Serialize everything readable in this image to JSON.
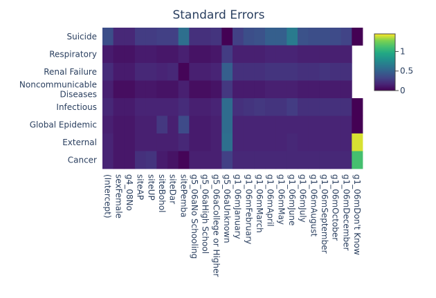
{
  "chart_data": {
    "type": "heatmap",
    "title": "Standard Errors",
    "x_labels": [
      "(Intercept)",
      "sexFemale",
      "g4_08No",
      "siteAP",
      "siteUP",
      "siteBohol",
      "siteDar",
      "sitePemba",
      "g5_06aNo Schooling",
      "g5_06aHigh School",
      "g5_06aCollege or Higher",
      "g5_06aUnknown",
      "g1_06mJanuary",
      "g1_06mFebruary",
      "g1_06mMarch",
      "g1_06mApril",
      "g1_06mMay",
      "g1_06mJune",
      "g1_06mJuly",
      "g1_06mAugust",
      "g1_06mSeptember",
      "g1_06mOctober",
      "g1_06mDecember",
      "g1_06mDon't Know"
    ],
    "y_labels": [
      "Suicide",
      "Respiratory",
      "Renal Failure",
      "Noncommunicable Diseases",
      "Infectious",
      "Global Epidemic",
      "External",
      "Cancer"
    ],
    "y_label_lines": [
      [
        "Suicide"
      ],
      [
        "Respiratory"
      ],
      [
        "Renal Failure"
      ],
      [
        "Noncommunicable",
        "Diseases"
      ],
      [
        "Infectious"
      ],
      [
        "Global Epidemic"
      ],
      [
        "External"
      ],
      [
        "Cancer"
      ]
    ],
    "values": [
      [
        0.38,
        0.18,
        0.18,
        0.28,
        0.28,
        0.3,
        0.3,
        0.58,
        0.22,
        0.22,
        0.24,
        0.0,
        0.3,
        0.38,
        0.4,
        0.48,
        0.48,
        0.66,
        0.4,
        0.38,
        0.38,
        0.36,
        0.32,
        0.0
      ],
      [
        0.12,
        0.08,
        0.08,
        0.12,
        0.12,
        0.1,
        0.1,
        0.14,
        0.08,
        0.08,
        0.1,
        0.28,
        0.14,
        0.14,
        0.14,
        0.16,
        0.16,
        0.16,
        0.14,
        0.14,
        0.14,
        0.14,
        0.14,
        null
      ],
      [
        0.2,
        0.12,
        0.12,
        0.18,
        0.18,
        0.16,
        0.18,
        0.02,
        0.14,
        0.14,
        0.16,
        0.48,
        0.22,
        0.22,
        0.22,
        0.24,
        0.24,
        0.24,
        0.22,
        0.22,
        0.24,
        0.22,
        0.22,
        null
      ],
      [
        0.14,
        0.06,
        0.06,
        0.1,
        0.1,
        0.08,
        0.08,
        0.14,
        0.06,
        0.06,
        0.08,
        0.26,
        0.12,
        0.12,
        0.12,
        0.14,
        0.14,
        0.14,
        0.12,
        0.12,
        0.12,
        0.12,
        0.12,
        null
      ],
      [
        0.18,
        0.12,
        0.12,
        0.16,
        0.16,
        0.16,
        0.16,
        0.2,
        0.14,
        0.14,
        0.16,
        0.56,
        0.22,
        0.24,
        0.26,
        0.24,
        0.24,
        0.28,
        0.22,
        0.22,
        0.22,
        0.22,
        0.22,
        0.0
      ],
      [
        0.14,
        0.1,
        0.1,
        0.14,
        0.14,
        0.26,
        0.14,
        0.36,
        0.12,
        0.12,
        0.14,
        0.56,
        0.16,
        0.16,
        0.16,
        0.16,
        0.16,
        0.16,
        0.16,
        0.16,
        0.16,
        0.16,
        0.16,
        0.0
      ],
      [
        0.16,
        0.1,
        0.1,
        0.14,
        0.14,
        0.14,
        0.14,
        0.18,
        0.12,
        0.12,
        0.14,
        0.58,
        0.16,
        0.16,
        0.16,
        0.16,
        0.16,
        0.18,
        0.16,
        0.16,
        0.16,
        0.16,
        0.16,
        1.4
      ],
      [
        0.16,
        0.1,
        0.1,
        0.22,
        0.24,
        0.12,
        0.08,
        0.02,
        0.14,
        0.14,
        0.14,
        0.3,
        0.18,
        0.18,
        0.18,
        0.18,
        0.18,
        0.18,
        0.18,
        0.18,
        0.18,
        0.18,
        0.18,
        1.12
      ]
    ],
    "colorscale": "viridis",
    "zmin": 0,
    "zmax": 1.45,
    "colorbar_ticks": [
      0,
      0.5,
      1
    ],
    "colorbar_tick_labels": [
      "0",
      "0.5",
      "1"
    ]
  }
}
